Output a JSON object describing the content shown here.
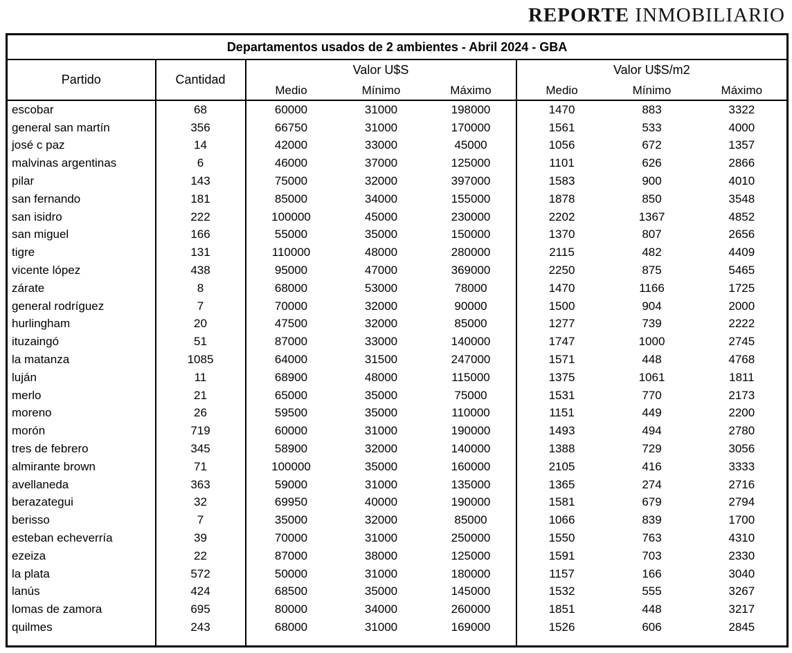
{
  "logo": {
    "part1": "REPORTE",
    "part2": "INMOBILIARIO"
  },
  "table": {
    "title": "Departamentos usados de 2 ambientes - Abril 2024 - GBA",
    "header": {
      "partido_label": "Partido",
      "cantidad_label": "Cantidad",
      "group_usd": "Valor U$S",
      "group_usd_m2": "Valor U$S/m2"
    },
    "sub_headers": [
      "Medio",
      "Mínimo",
      "Máximo"
    ],
    "columns": [
      "Partido",
      "Cantidad",
      "Valor U$S Medio",
      "Valor U$S Mínimo",
      "Valor U$S Máximo",
      "Valor U$S/m2 Medio",
      "Valor U$S/m2 Mínimo",
      "Valor U$S/m2 Máximo"
    ],
    "rows": [
      [
        "escobar",
        "68",
        "60000",
        "31000",
        "198000",
        "1470",
        "883",
        "3322"
      ],
      [
        "general san martín",
        "356",
        "66750",
        "31000",
        "170000",
        "1561",
        "533",
        "4000"
      ],
      [
        "josé c paz",
        "14",
        "42000",
        "33000",
        "45000",
        "1056",
        "672",
        "1357"
      ],
      [
        "malvinas argentinas",
        "6",
        "46000",
        "37000",
        "125000",
        "1101",
        "626",
        "2866"
      ],
      [
        "pilar",
        "143",
        "75000",
        "32000",
        "397000",
        "1583",
        "900",
        "4010"
      ],
      [
        "san fernando",
        "181",
        "85000",
        "34000",
        "155000",
        "1878",
        "850",
        "3548"
      ],
      [
        "san isidro",
        "222",
        "100000",
        "45000",
        "230000",
        "2202",
        "1367",
        "4852"
      ],
      [
        "san miguel",
        "166",
        "55000",
        "35000",
        "150000",
        "1370",
        "807",
        "2656"
      ],
      [
        "tigre",
        "131",
        "110000",
        "48000",
        "280000",
        "2115",
        "482",
        "4409"
      ],
      [
        "vicente lópez",
        "438",
        "95000",
        "47000",
        "369000",
        "2250",
        "875",
        "5465"
      ],
      [
        "zárate",
        "8",
        "68000",
        "53000",
        "78000",
        "1470",
        "1166",
        "1725"
      ],
      [
        "general rodríguez",
        "7",
        "70000",
        "32000",
        "90000",
        "1500",
        "904",
        "2000"
      ],
      [
        "hurlingham",
        "20",
        "47500",
        "32000",
        "85000",
        "1277",
        "739",
        "2222"
      ],
      [
        "ituzaingó",
        "51",
        "87000",
        "33000",
        "140000",
        "1747",
        "1000",
        "2745"
      ],
      [
        "la matanza",
        "1085",
        "64000",
        "31500",
        "247000",
        "1571",
        "448",
        "4768"
      ],
      [
        "luján",
        "11",
        "68900",
        "48000",
        "115000",
        "1375",
        "1061",
        "1811"
      ],
      [
        "merlo",
        "21",
        "65000",
        "35000",
        "75000",
        "1531",
        "770",
        "2173"
      ],
      [
        "moreno",
        "26",
        "59500",
        "35000",
        "110000",
        "1151",
        "449",
        "2200"
      ],
      [
        "morón",
        "719",
        "60000",
        "31000",
        "190000",
        "1493",
        "494",
        "2780"
      ],
      [
        "tres de febrero",
        "345",
        "58900",
        "32000",
        "140000",
        "1388",
        "729",
        "3056"
      ],
      [
        "almirante brown",
        "71",
        "100000",
        "35000",
        "160000",
        "2105",
        "416",
        "3333"
      ],
      [
        "avellaneda",
        "363",
        "59000",
        "31000",
        "135000",
        "1365",
        "274",
        "2716"
      ],
      [
        "berazategui",
        "32",
        "69950",
        "40000",
        "190000",
        "1581",
        "679",
        "2794"
      ],
      [
        "berisso",
        "7",
        "35000",
        "32000",
        "85000",
        "1066",
        "839",
        "1700"
      ],
      [
        "esteban echeverría",
        "39",
        "70000",
        "31000",
        "250000",
        "1550",
        "763",
        "4310"
      ],
      [
        "ezeiza",
        "22",
        "87000",
        "38000",
        "125000",
        "1591",
        "703",
        "2330"
      ],
      [
        "la plata",
        "572",
        "50000",
        "31000",
        "180000",
        "1157",
        "166",
        "3040"
      ],
      [
        "lanús",
        "424",
        "68500",
        "35000",
        "145000",
        "1532",
        "555",
        "3267"
      ],
      [
        "lomas de zamora",
        "695",
        "80000",
        "34000",
        "260000",
        "1851",
        "448",
        "3217"
      ],
      [
        "quilmes",
        "243",
        "68000",
        "31000",
        "169000",
        "1526",
        "606",
        "2845"
      ]
    ]
  },
  "colors": {
    "border": "#000000",
    "background": "#ffffff",
    "text": "#000000",
    "logo_text": "#151515"
  }
}
